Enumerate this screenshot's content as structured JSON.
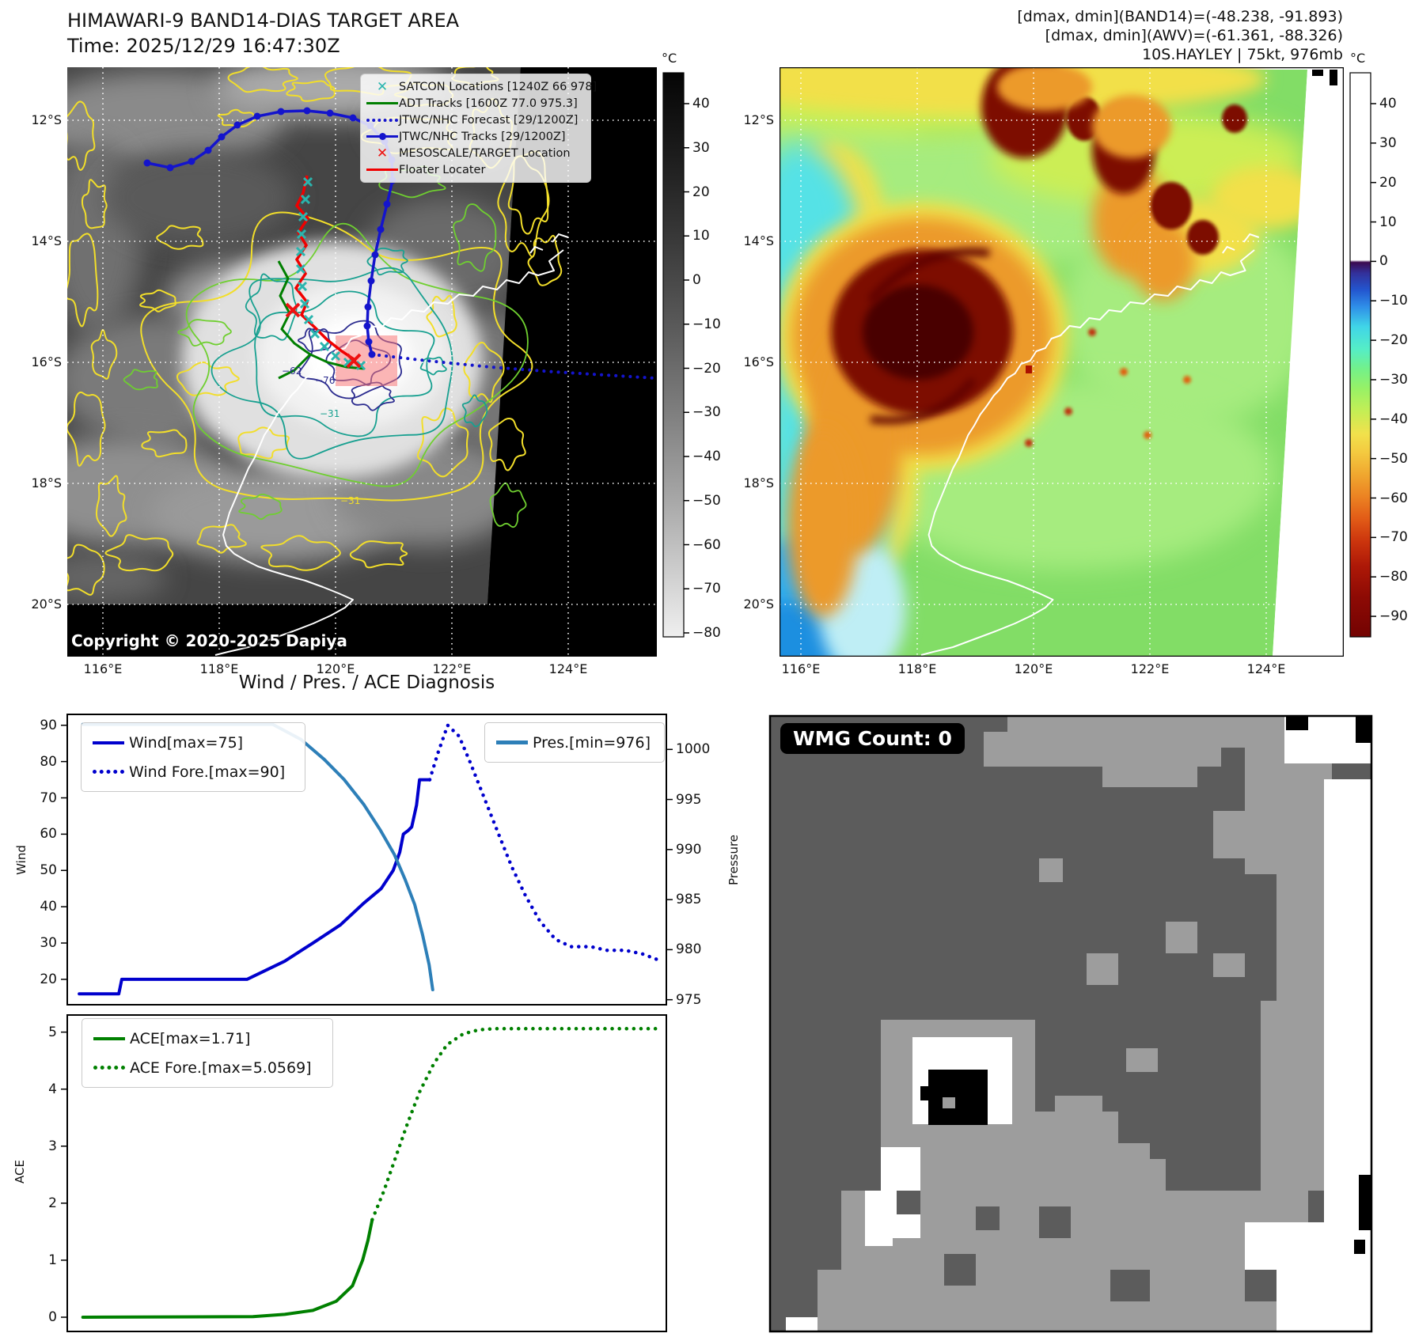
{
  "header": {
    "title_line1": "HIMAWARI-9 BAND14-DIAS TARGET AREA",
    "title_line2": "Time: 2025/12/29 16:47:30Z",
    "right_line1": "[dmax, dmin](BAND14)=(-48.238, -91.893)",
    "right_line2": "[dmax, dmin](AWV)=(-61.361, -88.326)",
    "right_line3": "10S.HAYLEY | 75kt, 976mb"
  },
  "maps": {
    "shared": {
      "lat_ticks": [
        "12°S",
        "14°S",
        "16°S",
        "18°S",
        "20°S"
      ],
      "lon_ticks": [
        "116°E",
        "118°E",
        "120°E",
        "122°E",
        "124°E"
      ]
    },
    "left": {
      "copyright": "Copyright © 2020-2025 Dapiya",
      "colorbar": {
        "unit": "°C",
        "ticks": [
          40,
          30,
          20,
          10,
          0,
          -10,
          -20,
          -30,
          -40,
          -50,
          -60,
          -70,
          -80
        ]
      },
      "legend": [
        {
          "label": "SATCON Locations [1240Z 66 978]",
          "marker": "cyan-x"
        },
        {
          "label": "ADT Tracks [1600Z 77.0 975.3]",
          "marker": "green-line"
        },
        {
          "label": "JTWC/NHC Forecast [29/1200Z]",
          "marker": "blue-dotted"
        },
        {
          "label": "JTWC/NHC Tracks [29/1200Z]",
          "marker": "blue-line-dot"
        },
        {
          "label": "MESOSCALE/TARGET Location",
          "marker": "red-x"
        },
        {
          "label": "Floater Locater",
          "marker": "red-line"
        }
      ],
      "contour_labels": [
        "-31",
        "-31",
        "-62",
        "-76"
      ]
    },
    "right": {
      "colorbar": {
        "unit": "°C",
        "ticks": [
          40,
          30,
          20,
          10,
          0,
          -10,
          -20,
          -30,
          -40,
          -50,
          -60,
          -70,
          -80,
          -90
        ]
      }
    }
  },
  "charts": {
    "title": "Wind / Pres. / ACE Diagnosis"
  },
  "wmg": {
    "label": "WMG Count: 0"
  },
  "chart_data": [
    {
      "type": "line",
      "title": "Wind / Pres. / ACE Diagnosis",
      "ylabel": "Wind",
      "y2label": "Pressure",
      "ylim": [
        13,
        93
      ],
      "y2lim": [
        974.5,
        1003.5
      ],
      "yticks": [
        20,
        30,
        40,
        50,
        60,
        70,
        80,
        90
      ],
      "y2ticks": [
        975,
        980,
        985,
        990,
        995,
        1000
      ],
      "grid": false,
      "legend_position": "upper-left-and-upper-right",
      "series": [
        {
          "name": "Wind[max=75]",
          "style": "solid",
          "color": "#0000cd",
          "axis": "left",
          "x": [
            0.02,
            0.086,
            0.091,
            0.3,
            0.363,
            0.41,
            0.456,
            0.495,
            0.524,
            0.544,
            0.555,
            0.561,
            0.569,
            0.575,
            0.583,
            0.588,
            0.605
          ],
          "values": [
            16,
            16,
            20,
            20,
            25,
            30,
            35,
            41,
            45,
            50,
            55,
            60,
            61,
            62,
            68,
            75,
            75
          ]
        },
        {
          "name": "Wind Fore.[max=90]",
          "style": "dotted",
          "color": "#0000cd",
          "axis": "left",
          "x": [
            0.605,
            0.618,
            0.635,
            0.654,
            0.672,
            0.696,
            0.72,
            0.742,
            0.765,
            0.789,
            0.815,
            0.841,
            0.874,
            0.9,
            0.931,
            0.96,
            0.992
          ],
          "values": [
            75,
            82,
            90,
            87,
            80,
            70,
            60,
            51,
            43,
            36,
            31,
            29,
            29,
            28,
            28,
            27,
            25
          ]
        },
        {
          "name": "Pres.[min=976]",
          "style": "solid",
          "color": "#2d7fb8",
          "axis": "right",
          "x": [
            0.026,
            0.343,
            0.39,
            0.429,
            0.462,
            0.495,
            0.522,
            0.546,
            0.564,
            0.58,
            0.593,
            0.604,
            0.61
          ],
          "values": [
            1002.5,
            1002.5,
            1001,
            999,
            997,
            994.5,
            992,
            989.5,
            987,
            984.5,
            981.5,
            978.5,
            976
          ]
        }
      ]
    },
    {
      "type": "line",
      "ylabel": "ACE",
      "ylim": [
        -0.25,
        5.3
      ],
      "yticks": [
        0,
        1,
        2,
        3,
        4,
        5
      ],
      "grid": false,
      "legend_position": "upper-left",
      "series": [
        {
          "name": "ACE[max=1.71]",
          "style": "solid",
          "color": "#008000",
          "axis": "left",
          "x": [
            0.026,
            0.31,
            0.363,
            0.41,
            0.449,
            0.476,
            0.493,
            0.502,
            0.509
          ],
          "values": [
            0,
            0.01,
            0.05,
            0.12,
            0.28,
            0.55,
            1.0,
            1.35,
            1.71
          ]
        },
        {
          "name": "ACE Fore.[max=5.0569]",
          "style": "dotted",
          "color": "#008000",
          "axis": "left",
          "x": [
            0.509,
            0.528,
            0.548,
            0.568,
            0.588,
            0.612,
            0.634,
            0.661,
            0.687,
            0.713,
            0.812,
            0.992
          ],
          "values": [
            1.71,
            2.2,
            2.8,
            3.4,
            3.95,
            4.45,
            4.78,
            4.97,
            5.04,
            5.06,
            5.06,
            5.06
          ]
        }
      ]
    }
  ]
}
